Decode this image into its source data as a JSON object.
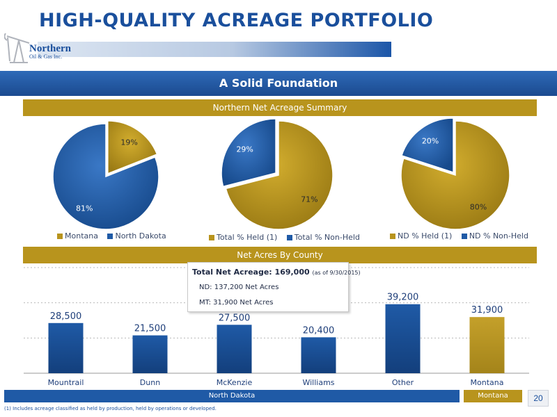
{
  "slide": {
    "title": "HIGH-QUALITY ACREAGE PORTFOLIO",
    "subtitle": "A Solid Foundation",
    "page_number": "20",
    "footnote": "(1)   Includes acreage classified as held by production, held by operations or developed.",
    "logo": {
      "line1": "Northern",
      "line2": "Oil & Gas Inc."
    }
  },
  "sections": {
    "summary_header": "Northern Net Acreage Summary",
    "county_header": "Net Acres By County"
  },
  "info_box": {
    "title": "Total Net Acreage: 169,000",
    "as_of": "(as of 9/30/2015)",
    "line1": "ND: 137,200 Net Acres",
    "line2": "MT: 31,900 Net Acres"
  },
  "regions": {
    "north_dakota": "North Dakota",
    "montana": "Montana"
  },
  "colors": {
    "gold": "#b8941d",
    "blue": "#1f5aa6",
    "title_blue": "#1a4f9c"
  },
  "chart_data": [
    {
      "type": "pie",
      "slices": [
        {
          "label": "Montana",
          "value": 19,
          "display": "19%",
          "color": "gold"
        },
        {
          "label": "North Dakota",
          "value": 81,
          "display": "81%",
          "color": "blue"
        }
      ]
    },
    {
      "type": "pie",
      "slices": [
        {
          "label": "Total % Held (1)",
          "value": 71,
          "display": "71%",
          "color": "gold"
        },
        {
          "label": "Total % Non-Held",
          "value": 29,
          "display": "29%",
          "color": "blue"
        }
      ]
    },
    {
      "type": "pie",
      "slices": [
        {
          "label": "ND % Held (1)",
          "value": 80,
          "display": "80%",
          "color": "gold"
        },
        {
          "label": "ND % Non-Held",
          "value": 20,
          "display": "20%",
          "color": "blue"
        }
      ]
    },
    {
      "type": "bar",
      "categories": [
        "Mountrail",
        "Dunn",
        "McKenzie",
        "Williams",
        "Other",
        "Montana"
      ],
      "values": [
        28500,
        21500,
        27500,
        20400,
        39200,
        31900
      ],
      "labels": [
        "28,500",
        "21,500",
        "27,500",
        "20,400",
        "39,200",
        "31,900"
      ],
      "colors": [
        "blue",
        "blue",
        "blue",
        "blue",
        "blue",
        "gold"
      ],
      "ylim": [
        0,
        60000
      ],
      "grid": true
    }
  ]
}
